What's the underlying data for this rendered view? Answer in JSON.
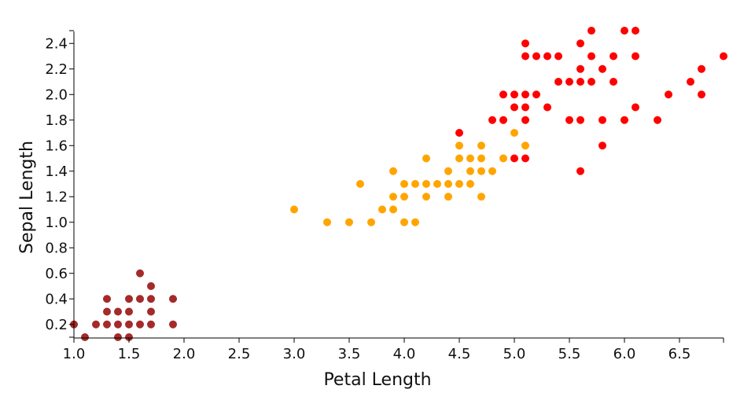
{
  "chart_data": {
    "type": "scatter",
    "title": "",
    "xlabel": "Petal Length",
    "ylabel": "Sepal Length",
    "xlim": [
      1.0,
      6.9
    ],
    "ylim": [
      0.1,
      2.5
    ],
    "xticks": [
      1.0,
      1.5,
      2.0,
      2.5,
      3.0,
      3.5,
      4.0,
      4.5,
      5.0,
      5.5,
      6.0,
      6.5
    ],
    "xtick_labels": [
      "1.0",
      "1.5",
      "2.0",
      "2.5",
      "3.0",
      "3.5",
      "4.0",
      "4.5",
      "5.0",
      "5.5",
      "6.0",
      "6.5"
    ],
    "yticks": [
      0.2,
      0.4,
      0.6,
      0.8,
      1.0,
      1.2,
      1.4,
      1.6,
      1.8,
      2.0,
      2.2,
      2.4
    ],
    "ytick_labels": [
      "0.2",
      "0.4",
      "0.6",
      "0.8",
      "1.0",
      "1.2",
      "1.4",
      "1.6",
      "1.8",
      "2.0",
      "2.2",
      "2.4"
    ],
    "grid": false,
    "legend": "none",
    "series": [
      {
        "color": "#a52a2a",
        "points": [
          [
            1.0,
            0.2
          ],
          [
            1.1,
            0.1
          ],
          [
            1.2,
            0.2
          ],
          [
            1.3,
            0.2
          ],
          [
            1.3,
            0.3
          ],
          [
            1.3,
            0.4
          ],
          [
            1.4,
            0.1
          ],
          [
            1.4,
            0.2
          ],
          [
            1.4,
            0.3
          ],
          [
            1.5,
            0.1
          ],
          [
            1.5,
            0.2
          ],
          [
            1.5,
            0.3
          ],
          [
            1.5,
            0.4
          ],
          [
            1.6,
            0.2
          ],
          [
            1.6,
            0.4
          ],
          [
            1.6,
            0.6
          ],
          [
            1.7,
            0.2
          ],
          [
            1.7,
            0.3
          ],
          [
            1.7,
            0.4
          ],
          [
            1.7,
            0.5
          ],
          [
            1.9,
            0.2
          ],
          [
            1.9,
            0.4
          ]
        ]
      },
      {
        "color": "#ffa500",
        "points": [
          [
            3.0,
            1.1
          ],
          [
            3.3,
            1.0
          ],
          [
            3.5,
            1.0
          ],
          [
            3.6,
            1.3
          ],
          [
            3.7,
            1.0
          ],
          [
            3.8,
            1.1
          ],
          [
            3.9,
            1.1
          ],
          [
            3.9,
            1.2
          ],
          [
            3.9,
            1.4
          ],
          [
            4.0,
            1.0
          ],
          [
            4.0,
            1.2
          ],
          [
            4.0,
            1.3
          ],
          [
            4.1,
            1.0
          ],
          [
            4.1,
            1.3
          ],
          [
            4.2,
            1.2
          ],
          [
            4.2,
            1.3
          ],
          [
            4.2,
            1.5
          ],
          [
            4.3,
            1.3
          ],
          [
            4.4,
            1.2
          ],
          [
            4.4,
            1.3
          ],
          [
            4.4,
            1.4
          ],
          [
            4.5,
            1.3
          ],
          [
            4.5,
            1.5
          ],
          [
            4.5,
            1.6
          ],
          [
            4.6,
            1.3
          ],
          [
            4.6,
            1.4
          ],
          [
            4.6,
            1.5
          ],
          [
            4.7,
            1.2
          ],
          [
            4.7,
            1.4
          ],
          [
            4.7,
            1.5
          ],
          [
            4.7,
            1.6
          ],
          [
            4.8,
            1.4
          ],
          [
            4.9,
            1.5
          ],
          [
            5.0,
            1.7
          ],
          [
            5.1,
            1.6
          ]
        ]
      },
      {
        "color": "#ff0000",
        "points": [
          [
            4.5,
            1.7
          ],
          [
            4.8,
            1.8
          ],
          [
            4.9,
            1.8
          ],
          [
            4.9,
            2.0
          ],
          [
            5.0,
            1.5
          ],
          [
            5.0,
            1.9
          ],
          [
            5.0,
            2.0
          ],
          [
            5.1,
            1.5
          ],
          [
            5.1,
            1.8
          ],
          [
            5.1,
            1.9
          ],
          [
            5.1,
            2.0
          ],
          [
            5.1,
            2.3
          ],
          [
            5.1,
            2.4
          ],
          [
            5.2,
            2.0
          ],
          [
            5.2,
            2.3
          ],
          [
            5.3,
            1.9
          ],
          [
            5.3,
            2.3
          ],
          [
            5.4,
            2.1
          ],
          [
            5.4,
            2.3
          ],
          [
            5.5,
            1.8
          ],
          [
            5.5,
            2.1
          ],
          [
            5.6,
            1.4
          ],
          [
            5.6,
            1.8
          ],
          [
            5.6,
            2.1
          ],
          [
            5.6,
            2.2
          ],
          [
            5.6,
            2.4
          ],
          [
            5.7,
            2.1
          ],
          [
            5.7,
            2.3
          ],
          [
            5.7,
            2.5
          ],
          [
            5.8,
            1.6
          ],
          [
            5.8,
            1.8
          ],
          [
            5.8,
            2.2
          ],
          [
            5.9,
            2.1
          ],
          [
            5.9,
            2.3
          ],
          [
            6.0,
            1.8
          ],
          [
            6.0,
            2.5
          ],
          [
            6.1,
            1.9
          ],
          [
            6.1,
            2.3
          ],
          [
            6.1,
            2.5
          ],
          [
            6.3,
            1.8
          ],
          [
            6.4,
            2.0
          ],
          [
            6.6,
            2.1
          ],
          [
            6.7,
            2.0
          ],
          [
            6.7,
            2.2
          ],
          [
            6.9,
            2.3
          ]
        ]
      }
    ]
  }
}
